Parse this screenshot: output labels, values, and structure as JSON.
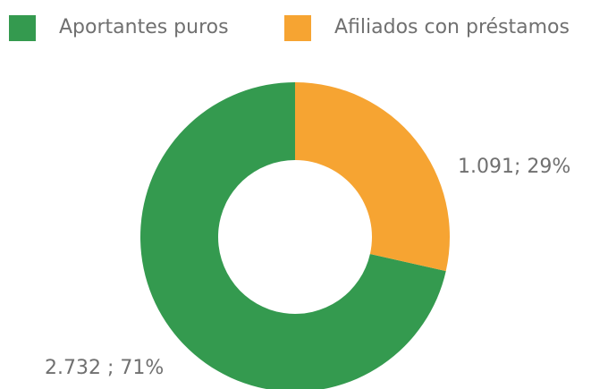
{
  "chart_data": {
    "type": "donut",
    "categories": [
      "Aportantes  puros",
      "Afiliados con préstamos"
    ],
    "values": [
      2732,
      1091
    ],
    "value_labels": [
      "2.732 ; 71%",
      "1.091; 29%"
    ],
    "colors": [
      "#349a4f",
      "#f6a432"
    ],
    "legend": "top"
  }
}
